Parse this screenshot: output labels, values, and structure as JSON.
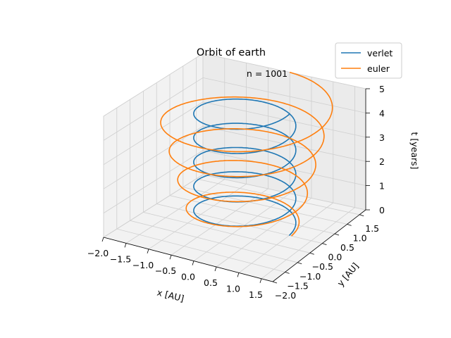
{
  "chart_data": {
    "type": "line",
    "title": "Orbit of earth",
    "annotation": "n = 1001",
    "xlabel": "x [AU]",
    "ylabel": "y [AU]",
    "zlabel": "t [years]",
    "x_ticks": [
      "−2.0",
      "−1.5",
      "−1.0",
      "−0.5",
      "0.0",
      "0.5",
      "1.0",
      "1.5"
    ],
    "y_ticks": [
      "−2.0",
      "−1.5",
      "−1.0",
      "−0.5",
      "0.0",
      "0.5",
      "1.0",
      "1.5"
    ],
    "z_ticks": [
      "0",
      "1",
      "2",
      "3",
      "4",
      "5"
    ],
    "xlim": [
      -2.0,
      1.75
    ],
    "ylim": [
      -2.0,
      1.75
    ],
    "zlim": [
      0,
      5
    ],
    "legend_position": "top-right",
    "grid": true,
    "series": [
      {
        "name": "verlet",
        "color": "#1f77b4",
        "radius_start": 1.0,
        "radius_end": 1.0,
        "t_start": 0,
        "t_end": 5,
        "turns": 5
      },
      {
        "name": "euler",
        "color": "#ff7f0e",
        "radius_start": 1.05,
        "radius_end": 1.75,
        "t_start": 0,
        "t_end": 5,
        "turns": 4.25
      }
    ]
  }
}
